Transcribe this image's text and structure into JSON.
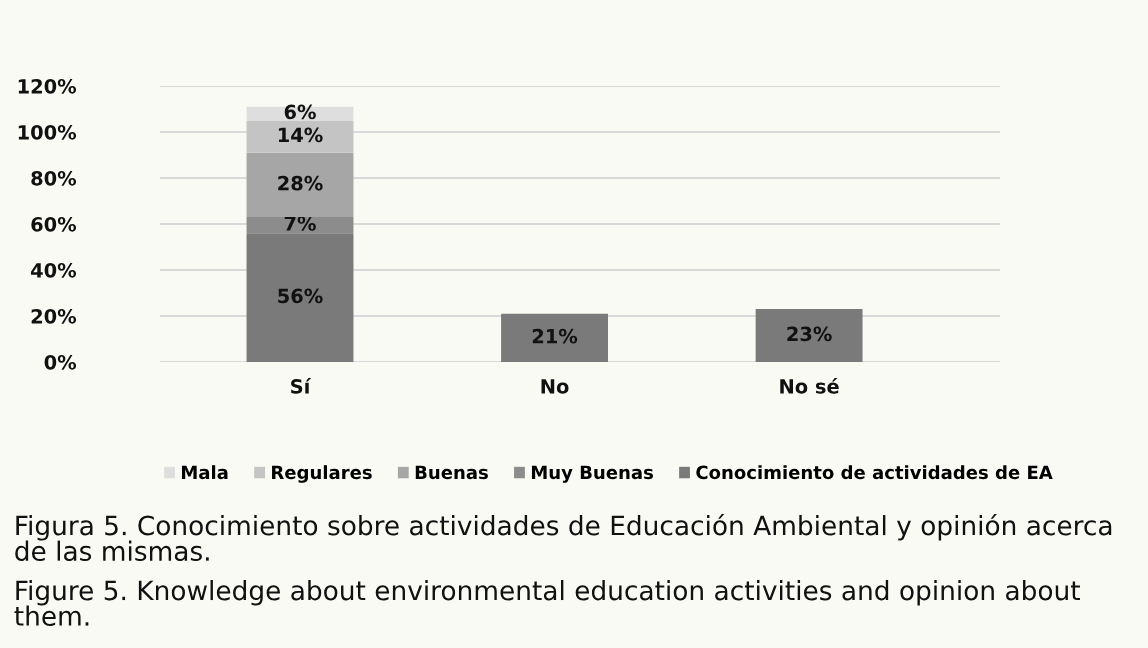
{
  "chart_data": {
    "type": "bar",
    "stacked": true,
    "categories": [
      "Sí",
      "No",
      "No sé"
    ],
    "series": [
      {
        "name": "Conocimiento de actividades de EA",
        "color": "#7a7a7a",
        "values": [
          56,
          21,
          23
        ],
        "value_labels": [
          "56%",
          "21%",
          "23%"
        ]
      },
      {
        "name": "Muy Buenas",
        "color": "#8c8c8c",
        "values": [
          7,
          null,
          null
        ],
        "value_labels": [
          "7%",
          null,
          null
        ]
      },
      {
        "name": "Buenas",
        "color": "#a6a6a6",
        "values": [
          28,
          null,
          null
        ],
        "value_labels": [
          "28%",
          null,
          null
        ]
      },
      {
        "name": "Regulares",
        "color": "#c4c4c4",
        "values": [
          14,
          null,
          null
        ],
        "value_labels": [
          "14%",
          null,
          null
        ]
      },
      {
        "name": "Mala",
        "color": "#dedede",
        "values": [
          6,
          null,
          null
        ],
        "value_labels": [
          "6%",
          null,
          null
        ]
      }
    ],
    "ylim": [
      0,
      120
    ],
    "yticks": [
      {
        "value": 0,
        "label": "0%"
      },
      {
        "value": 20,
        "label": "20%"
      },
      {
        "value": 40,
        "label": "40%"
      },
      {
        "value": 60,
        "label": "60%"
      },
      {
        "value": 80,
        "label": "80%"
      },
      {
        "value": 100,
        "label": "100%"
      },
      {
        "value": 120,
        "label": "120%"
      }
    ],
    "grid": "y",
    "legend": "bottom",
    "annotations": [
      "Figura 5. Conocimiento sobre actividades de Educación Ambiental y opinión acerca de las mismas.",
      "Figure 5. Knowledge about environmental education activities and opinion about them."
    ]
  }
}
